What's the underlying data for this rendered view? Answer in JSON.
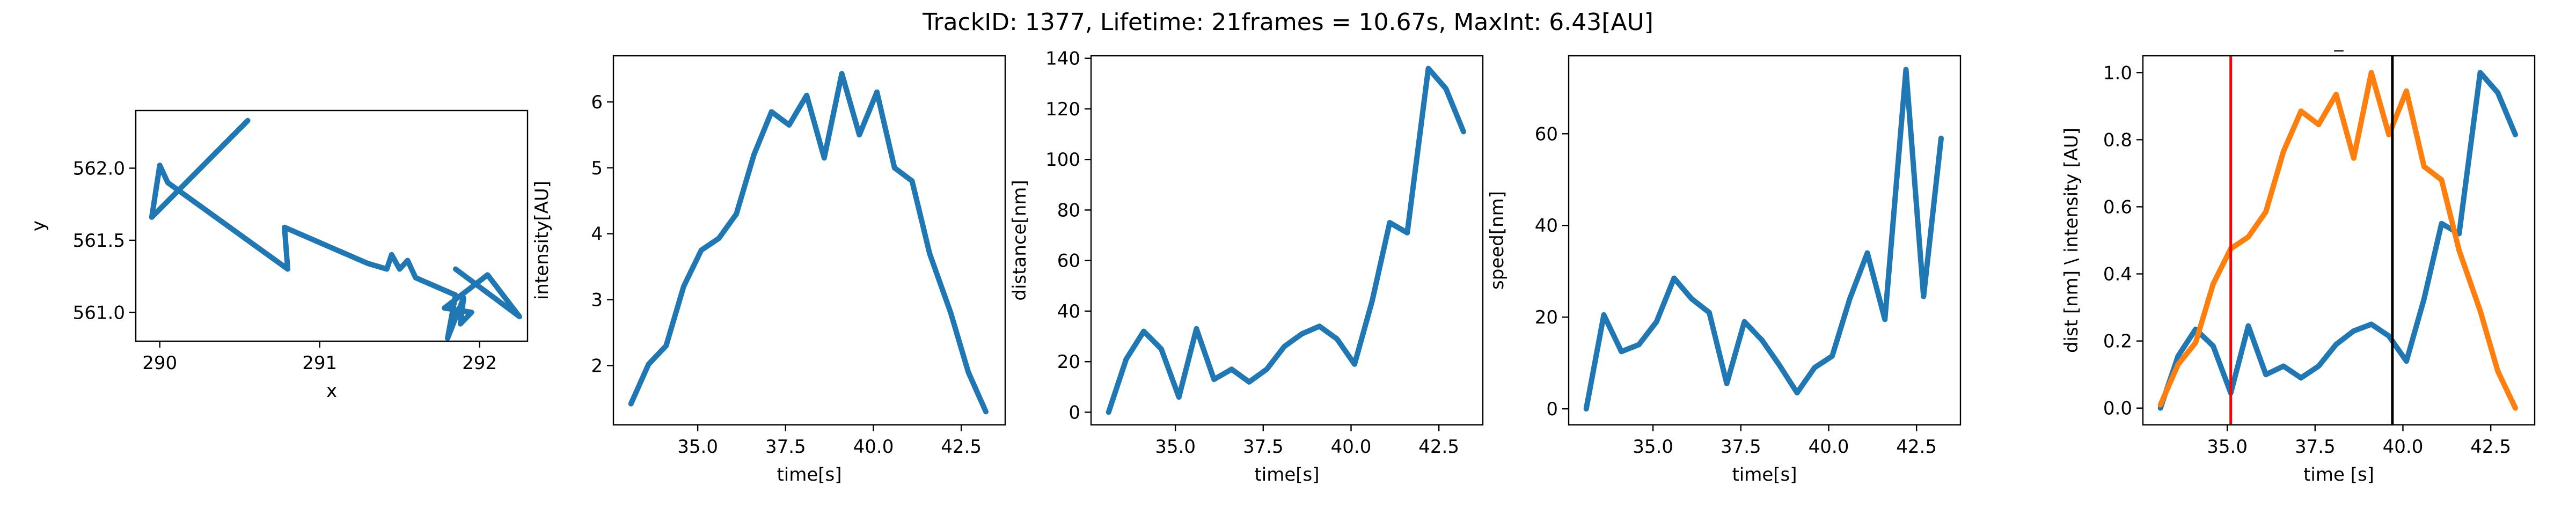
{
  "suptitle": "TrackID: 1377, Lifetime: 21frames = 10.67s, MaxInt: 6.43[AU]",
  "colors": {
    "blue": "#1f77b4",
    "orange": "#ff7f0e",
    "red": "#ff0000",
    "black": "#000000"
  },
  "chart_data": [
    {
      "type": "line",
      "title": "",
      "xlabel": "x",
      "ylabel": "y",
      "xlim": [
        289.85,
        292.3
      ],
      "ylim": [
        560.8,
        562.4
      ],
      "xticks": [
        290,
        291,
        292
      ],
      "xtick_labels": [
        "290",
        "291",
        "292"
      ],
      "yticks": [
        561.0,
        561.5,
        562.0
      ],
      "ytick_labels": [
        "561.0",
        "561.5",
        "562.0"
      ],
      "series": [
        {
          "x": [
            290.55,
            289.95,
            290.0,
            290.05,
            290.8,
            290.78,
            291.3,
            291.42,
            291.45,
            291.5,
            291.55,
            291.6,
            291.85,
            291.8,
            291.9,
            291.88,
            291.95,
            291.78,
            292.05,
            292.25,
            291.85
          ],
          "y": [
            562.33,
            561.66,
            562.02,
            561.9,
            561.3,
            561.59,
            561.34,
            561.3,
            561.4,
            561.3,
            561.36,
            561.24,
            561.12,
            560.82,
            561.1,
            560.92,
            561.0,
            561.03,
            561.26,
            560.97,
            561.3
          ]
        }
      ],
      "grid": false
    },
    {
      "type": "line",
      "title": "",
      "xlabel": "time[s]",
      "ylabel": "intensity[AU]",
      "xlim": [
        32.6,
        43.75
      ],
      "ylim": [
        1.1,
        6.7
      ],
      "xticks": [
        35.0,
        37.5,
        40.0,
        42.5
      ],
      "xtick_labels": [
        "35.0",
        "37.5",
        "40.0",
        "42.5"
      ],
      "yticks": [
        2,
        3,
        4,
        5,
        6
      ],
      "ytick_labels": [
        "2",
        "3",
        "4",
        "5",
        "6"
      ],
      "series": [
        {
          "x": [
            33.1,
            33.6,
            34.1,
            34.6,
            35.1,
            35.6,
            36.1,
            36.6,
            37.1,
            37.6,
            38.1,
            38.6,
            39.1,
            39.6,
            40.1,
            40.6,
            41.1,
            41.6,
            42.2,
            42.7,
            43.2
          ],
          "y": [
            1.42,
            2.02,
            2.3,
            3.2,
            3.75,
            3.93,
            4.3,
            5.2,
            5.85,
            5.65,
            6.1,
            5.15,
            6.43,
            5.5,
            6.15,
            5.0,
            4.8,
            3.7,
            2.8,
            1.9,
            1.3
          ]
        }
      ],
      "grid": false
    },
    {
      "type": "line",
      "title": "",
      "xlabel": "time[s]",
      "ylabel": "distance[nm]",
      "xlim": [
        32.6,
        43.75
      ],
      "ylim": [
        -5,
        141
      ],
      "xticks": [
        35.0,
        37.5,
        40.0,
        42.5
      ],
      "xtick_labels": [
        "35.0",
        "37.5",
        "40.0",
        "42.5"
      ],
      "yticks": [
        0,
        20,
        40,
        60,
        80,
        100,
        120,
        140
      ],
      "ytick_labels": [
        "0",
        "20",
        "40",
        "60",
        "80",
        "100",
        "120",
        "140"
      ],
      "series": [
        {
          "x": [
            33.1,
            33.6,
            34.1,
            34.6,
            35.1,
            35.6,
            36.1,
            36.6,
            37.1,
            37.6,
            38.1,
            38.6,
            39.1,
            39.6,
            40.1,
            40.6,
            41.1,
            41.6,
            42.2,
            42.7,
            43.2
          ],
          "y": [
            0,
            21,
            32,
            25,
            6,
            33,
            13,
            17,
            12,
            17,
            26,
            31,
            34,
            29,
            19,
            44,
            75,
            71,
            136,
            128,
            111
          ]
        }
      ],
      "grid": false
    },
    {
      "type": "line",
      "title": "",
      "xlabel": "time[s]",
      "ylabel": "speed[nm]",
      "xlim": [
        32.6,
        43.75
      ],
      "ylim": [
        -3.5,
        77
      ],
      "xticks": [
        35.0,
        37.5,
        40.0,
        42.5
      ],
      "xtick_labels": [
        "35.0",
        "37.5",
        "40.0",
        "42.5"
      ],
      "yticks": [
        0,
        20,
        40,
        60
      ],
      "ytick_labels": [
        "0",
        "20",
        "40",
        "60"
      ],
      "series": [
        {
          "x": [
            33.1,
            33.6,
            34.1,
            34.6,
            35.1,
            35.6,
            36.1,
            36.6,
            37.1,
            37.6,
            38.1,
            38.6,
            39.1,
            39.6,
            40.1,
            40.6,
            41.1,
            41.6,
            42.2,
            42.7,
            43.2
          ],
          "y": [
            0,
            20.5,
            12.5,
            14,
            19,
            28.5,
            24,
            21,
            5.5,
            19,
            15,
            9.5,
            3.5,
            9,
            11.5,
            24,
            34,
            19.5,
            74,
            24.5,
            59
          ]
        }
      ],
      "grid": false
    },
    {
      "type": "line",
      "title": "_",
      "xlabel": "time [s]",
      "ylabel": "dist [nm] \\ intensity [AU]",
      "xlim": [
        32.6,
        43.75
      ],
      "ylim": [
        -0.05,
        1.05
      ],
      "xticks": [
        35.0,
        37.5,
        40.0,
        42.5
      ],
      "xtick_labels": [
        "35.0",
        "37.5",
        "40.0",
        "42.5"
      ],
      "yticks": [
        0.0,
        0.2,
        0.4,
        0.6,
        0.8,
        1.0
      ],
      "ytick_labels": [
        "0.0",
        "0.2",
        "0.4",
        "0.6",
        "0.8",
        "1.0"
      ],
      "series": [
        {
          "color_key": "blue",
          "x": [
            33.1,
            33.6,
            34.1,
            34.6,
            35.1,
            35.6,
            36.1,
            36.6,
            37.1,
            37.6,
            38.1,
            38.6,
            39.1,
            39.6,
            40.1,
            40.6,
            41.1,
            41.6,
            42.2,
            42.7,
            43.2
          ],
          "y": [
            0.0,
            0.155,
            0.235,
            0.185,
            0.045,
            0.245,
            0.1,
            0.125,
            0.09,
            0.125,
            0.19,
            0.23,
            0.25,
            0.215,
            0.14,
            0.325,
            0.55,
            0.52,
            1.0,
            0.94,
            0.815
          ]
        },
        {
          "color_key": "orange",
          "x": [
            33.1,
            33.6,
            34.1,
            34.6,
            35.1,
            35.6,
            36.1,
            36.6,
            37.1,
            37.6,
            38.1,
            38.6,
            39.1,
            39.6,
            40.1,
            40.6,
            41.1,
            41.6,
            42.2,
            42.7,
            43.2
          ],
          "y": [
            0.01,
            0.13,
            0.195,
            0.37,
            0.475,
            0.51,
            0.585,
            0.765,
            0.885,
            0.845,
            0.935,
            0.745,
            1.0,
            0.815,
            0.945,
            0.72,
            0.68,
            0.47,
            0.29,
            0.11,
            0.0
          ]
        }
      ],
      "vlines": [
        {
          "x": 35.1,
          "color_key": "red"
        },
        {
          "x": 39.7,
          "color_key": "black"
        }
      ],
      "grid": false
    }
  ]
}
